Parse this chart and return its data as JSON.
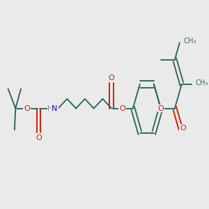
{
  "bg_color": "#eaeaea",
  "bond_color": "#2e6b5e",
  "oxygen_color": "#cc2200",
  "nitrogen_color": "#2200cc",
  "bond_width": 1.4,
  "figsize": [
    3.0,
    3.0
  ],
  "dpi": 100,
  "xlim": [
    0.0,
    1.0
  ],
  "ylim": [
    0.25,
    0.78
  ]
}
